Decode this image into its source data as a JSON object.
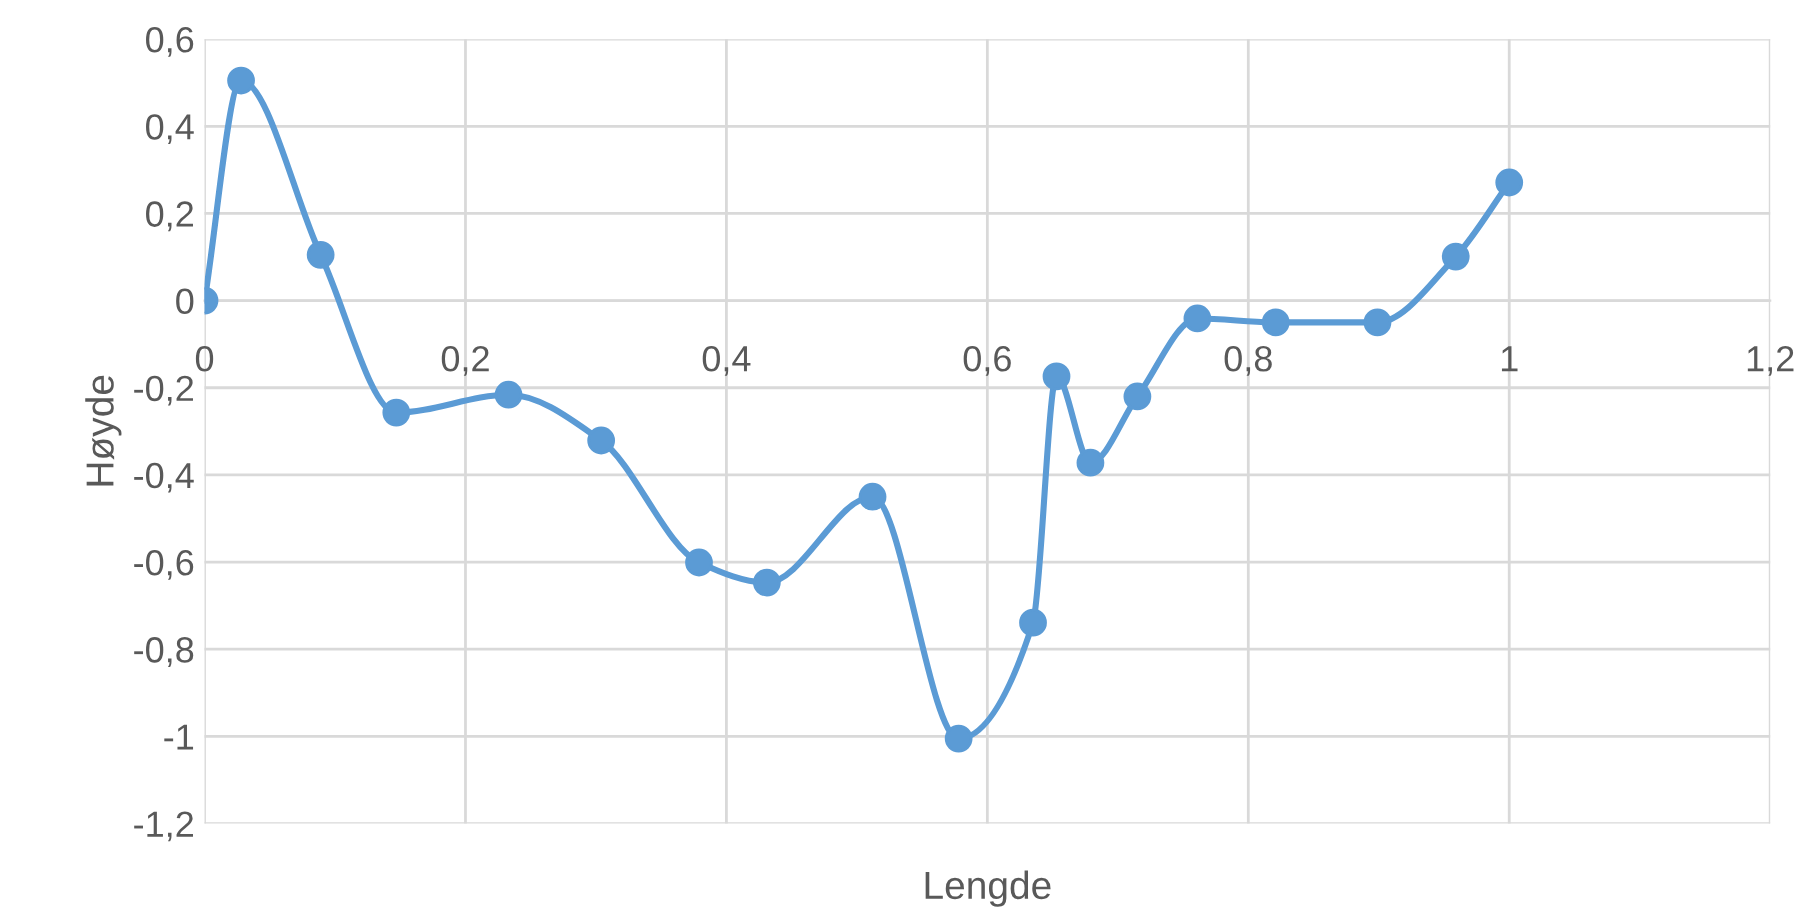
{
  "chart_data": {
    "type": "line",
    "xlabel": "Lengde",
    "ylabel": "Høyde",
    "series": [
      {
        "color": "#5b9bd5",
        "x": [
          0,
          0.028,
          0.089,
          0.147,
          0.233,
          0.304,
          0.379,
          0.431,
          0.512,
          0.578,
          0.635,
          0.653,
          0.679,
          0.715,
          0.761,
          0.821,
          0.899,
          0.959,
          1.0
        ],
        "values": [
          0,
          0.505,
          0.105,
          -0.257,
          -0.216,
          -0.321,
          -0.601,
          -0.647,
          -0.45,
          -1.005,
          -0.739,
          -0.174,
          -0.372,
          -0.22,
          -0.041,
          -0.05,
          -0.05,
          0.101,
          0.271
        ]
      }
    ],
    "marker": "circle",
    "line_style": "solid",
    "grid": true,
    "xlim": [
      0,
      1.2
    ],
    "ylim": [
      -1.2,
      0.6
    ],
    "xticks": [
      0,
      {
        "value": 0.2,
        "label": "0,2"
      },
      {
        "value": 0.4,
        "label": "0,4"
      },
      {
        "value": 0.6,
        "label": "0,6"
      },
      {
        "value": 0.8,
        "label": "0,8"
      },
      1,
      {
        "value": 1.2,
        "label": "1,2"
      }
    ],
    "yticks": [
      {
        "value": -1.2,
        "label": "-1,2"
      },
      -1,
      {
        "value": -0.8,
        "label": "-0,8"
      },
      {
        "value": -0.6,
        "label": "-0,6"
      },
      {
        "value": -0.4,
        "label": "-0,4"
      },
      {
        "value": -0.2,
        "label": "-0,2"
      },
      0,
      {
        "value": 0.2,
        "label": "0,2"
      },
      {
        "value": 0.4,
        "label": "0,4"
      },
      {
        "value": 0.6,
        "label": "0,6"
      }
    ]
  }
}
